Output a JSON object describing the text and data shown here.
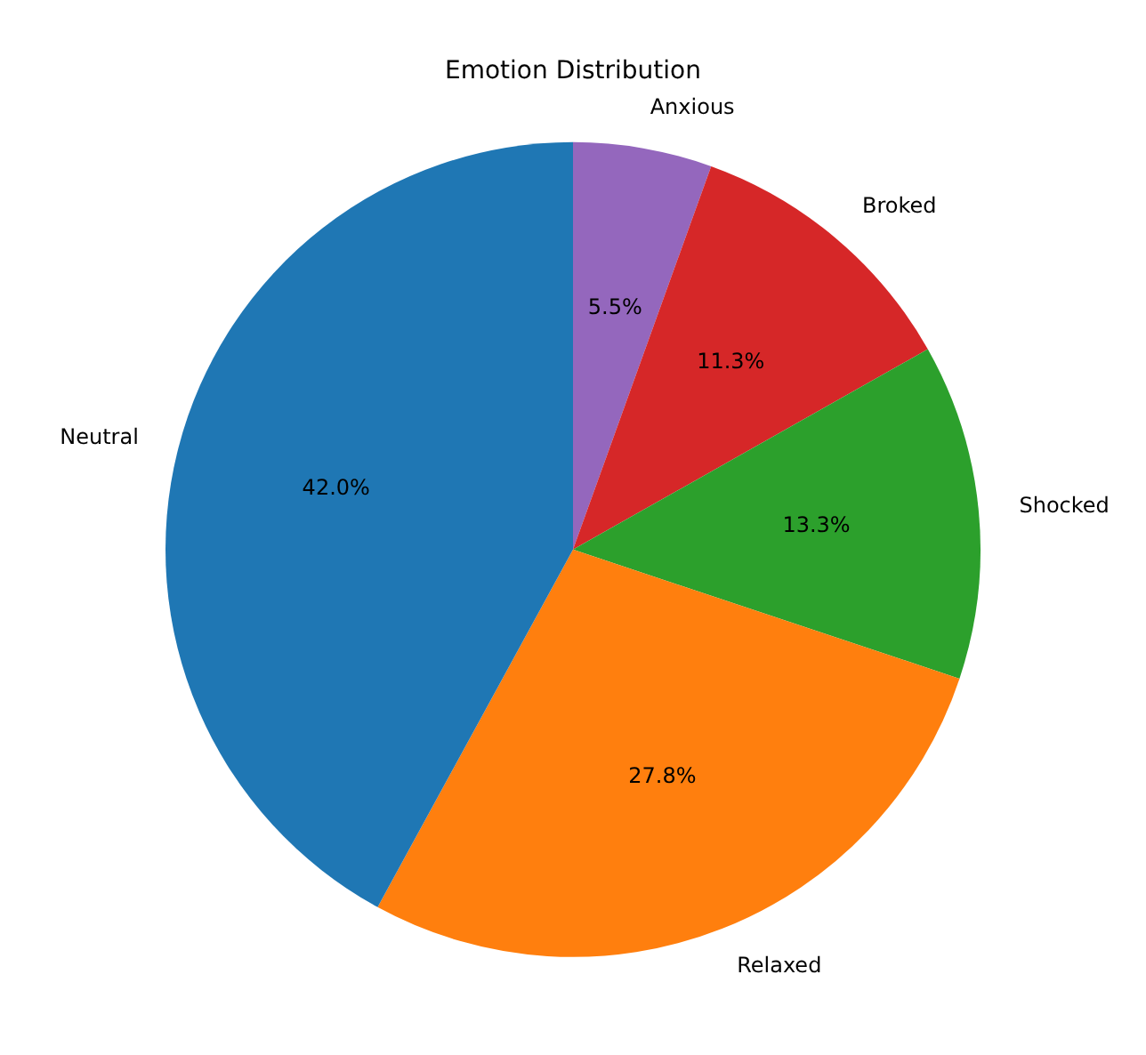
{
  "chart_data": {
    "type": "pie",
    "title": "Emotion Distribution",
    "categories": [
      "Neutral",
      "Relaxed",
      "Shocked",
      "Broked",
      "Anxious"
    ],
    "values": [
      42.0,
      27.8,
      13.3,
      11.3,
      5.5
    ],
    "colors": [
      "#1f77b4",
      "#ff7f0e",
      "#2ca02c",
      "#d62728",
      "#9467bd"
    ],
    "value_labels": [
      "42.0%",
      "27.8%",
      "13.3%",
      "11.3%",
      "5.5%"
    ],
    "legend": false
  }
}
